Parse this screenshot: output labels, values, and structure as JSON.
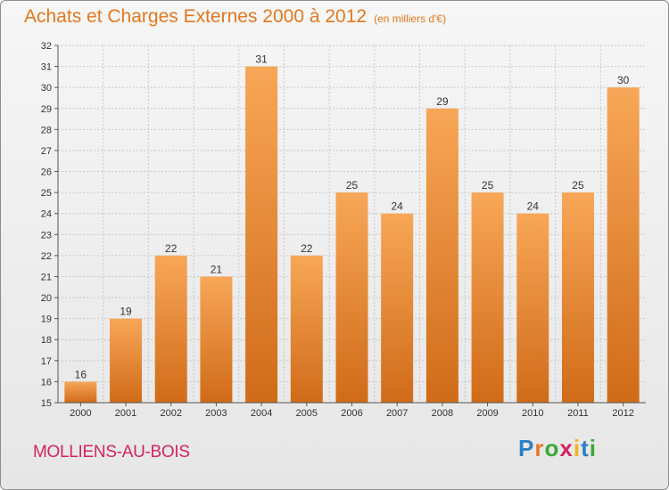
{
  "title": "Achats et Charges Externes 2000 à 2012",
  "unit": "(en milliers d'€)",
  "city": "MOLLIENS-AU-BOIS",
  "logo": "Proxiti",
  "colors": {
    "title": "#e07820",
    "city": "#d1255f",
    "bar_top": "#f7a757",
    "bar_bottom": "#d06b18",
    "grid": "#c8c8c8"
  },
  "chart_data": {
    "type": "bar",
    "title": "Achats et Charges Externes 2000 à 2012",
    "subtitle": "(en milliers d'€)",
    "categories": [
      "2000",
      "2001",
      "2002",
      "2003",
      "2004",
      "2005",
      "2006",
      "2007",
      "2008",
      "2009",
      "2010",
      "2011",
      "2012"
    ],
    "values": [
      16,
      19,
      22,
      21,
      31,
      22,
      25,
      24,
      29,
      25,
      24,
      25,
      30
    ],
    "ylim": [
      15,
      32
    ],
    "yticks": [
      15,
      16,
      17,
      18,
      19,
      20,
      21,
      22,
      23,
      24,
      25,
      26,
      27,
      28,
      29,
      30,
      31,
      32
    ],
    "grid": true,
    "xlabel": "",
    "ylabel": ""
  }
}
